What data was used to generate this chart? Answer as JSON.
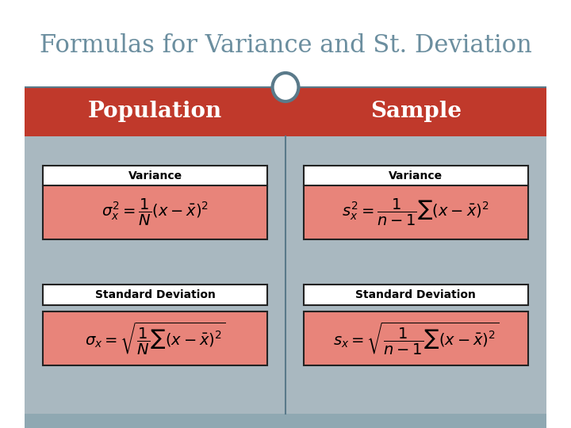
{
  "title": "Formulas for Variance and St. Deviation",
  "title_color": "#6b8e9f",
  "title_fontsize": 22,
  "header_bg_color": "#c0392b",
  "header_text_color": "#ffffff",
  "header_left": "Population",
  "header_right": "Sample",
  "body_bg_color": "#a9b8c0",
  "formula_bg_color": "#e8847a",
  "formula_border_color": "#222222",
  "label_bg_color": "#ffffff",
  "label_border_color": "#222222",
  "label_fontsize": 10,
  "formula_fontsize": 14,
  "pop_variance_label": "Variance",
  "pop_std_label": "Standard Deviation",
  "samp_variance_label": "Variance",
  "samp_std_label": "Standard Deviation",
  "divider_color": "#5a7a8a",
  "circle_edge_color": "#5a7a8a",
  "circle_face_color": "#ffffff",
  "footer_color": "#8fa8b2"
}
